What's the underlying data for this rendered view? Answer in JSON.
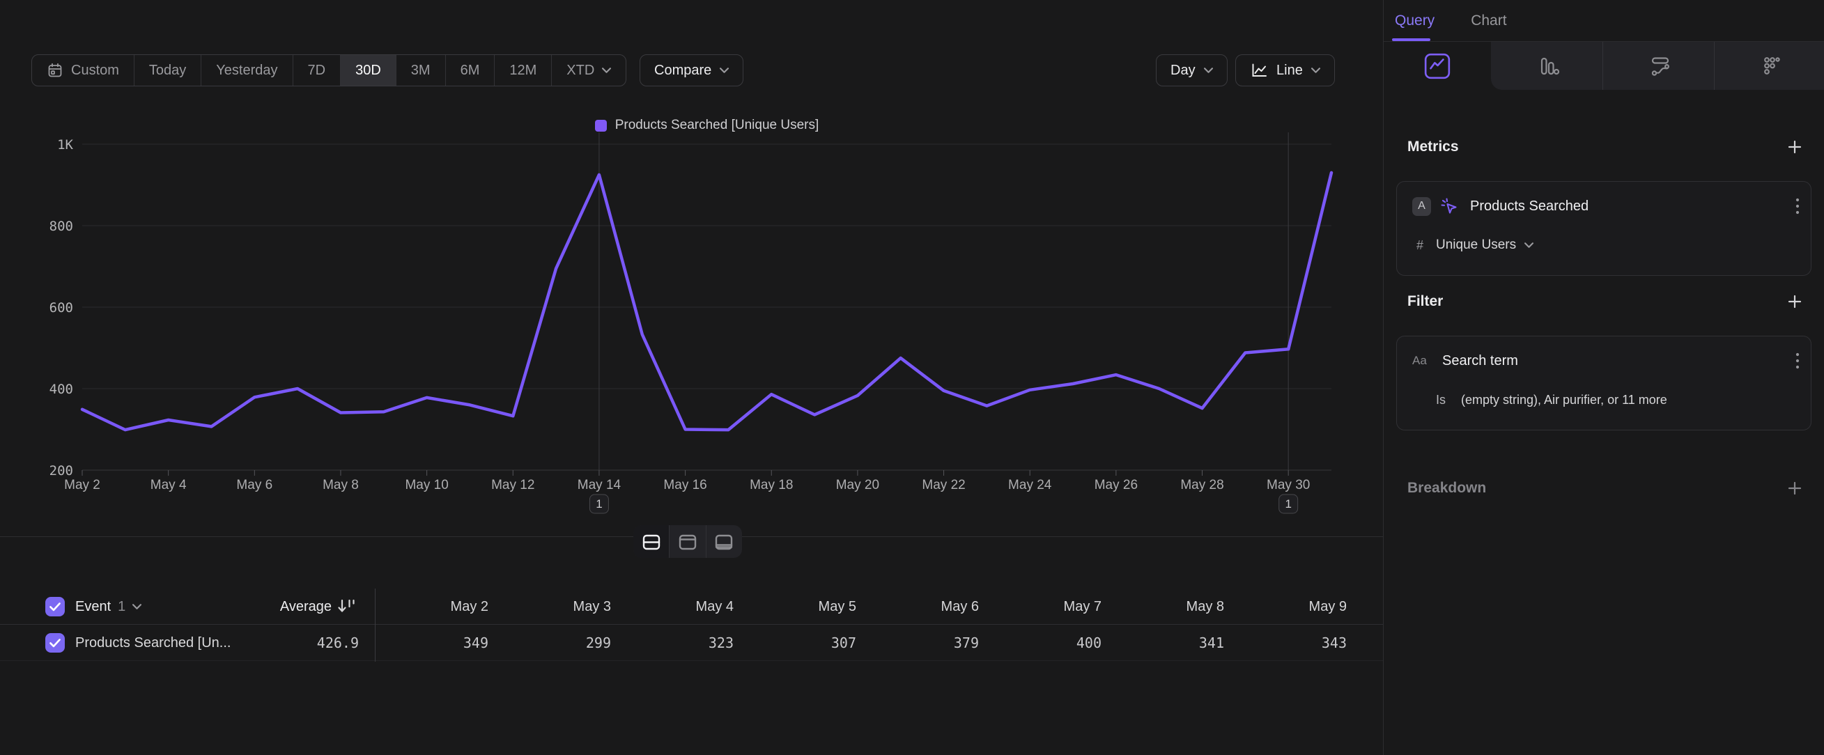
{
  "toolbar": {
    "date_ranges": [
      "Custom",
      "Today",
      "Yesterday",
      "7D",
      "30D",
      "3M",
      "6M",
      "12M",
      "XTD"
    ],
    "selected_range": "30D",
    "compare_label": "Compare",
    "interval_label": "Day",
    "chart_type_label": "Line"
  },
  "legend": {
    "label": "Products Searched [Unique Users]",
    "color": "#8159f6"
  },
  "chart_data": {
    "type": "line",
    "series_name": "Products Searched [Unique Users]",
    "x": [
      "May 2",
      "May 3",
      "May 4",
      "May 5",
      "May 6",
      "May 7",
      "May 8",
      "May 9",
      "May 10",
      "May 11",
      "May 12",
      "May 13",
      "May 14",
      "May 15",
      "May 16",
      "May 17",
      "May 18",
      "May 19",
      "May 20",
      "May 21",
      "May 22",
      "May 23",
      "May 24",
      "May 25",
      "May 26",
      "May 27",
      "May 28",
      "May 29",
      "May 30",
      "May 31"
    ],
    "values": [
      349,
      299,
      323,
      307,
      379,
      400,
      341,
      343,
      378,
      360,
      333,
      695,
      925,
      533,
      300,
      299,
      386,
      336,
      383,
      475,
      395,
      358,
      397,
      412,
      434,
      400,
      352,
      488,
      497,
      930
    ],
    "ylim": [
      200,
      1000
    ],
    "y_ticks": [
      {
        "value": 200,
        "label": "200"
      },
      {
        "value": 400,
        "label": "400"
      },
      {
        "value": 600,
        "label": "600"
      },
      {
        "value": 800,
        "label": "800"
      },
      {
        "value": 1000,
        "label": "1K"
      }
    ],
    "x_tick_every": 2,
    "grid": true,
    "legend_position": "top-center",
    "line_color": "#7a58f8",
    "annotations": [
      {
        "x": "May 14",
        "label": "1"
      },
      {
        "x": "May 30",
        "label": "1"
      }
    ]
  },
  "table": {
    "header": {
      "event_label": "Event",
      "event_count": "1",
      "average_label": "Average"
    },
    "columns": [
      "May 2",
      "May 3",
      "May 4",
      "May 5",
      "May 6",
      "May 7",
      "May 8",
      "May 9"
    ],
    "row": {
      "label": "Products Searched [Un...",
      "average": "426.9",
      "values": [
        "349",
        "299",
        "323",
        "307",
        "379",
        "400",
        "341",
        "343"
      ],
      "checked": true
    }
  },
  "sidebar": {
    "tabs": [
      {
        "label": "Query",
        "active": true
      },
      {
        "label": "Chart",
        "active": false
      }
    ],
    "icon_tabs": [
      "insights",
      "funnels",
      "flows",
      "retention"
    ],
    "metrics": {
      "heading": "Metrics",
      "row_letter": "A",
      "event_name": "Products Searched",
      "aggregation_prefix": "#",
      "aggregation": "Unique Users"
    },
    "filter": {
      "heading": "Filter",
      "property_type": "Aa",
      "property_name": "Search term",
      "operator": "Is",
      "value": "(empty string), Air purifier, or 11 more"
    },
    "breakdown": {
      "heading": "Breakdown"
    }
  }
}
